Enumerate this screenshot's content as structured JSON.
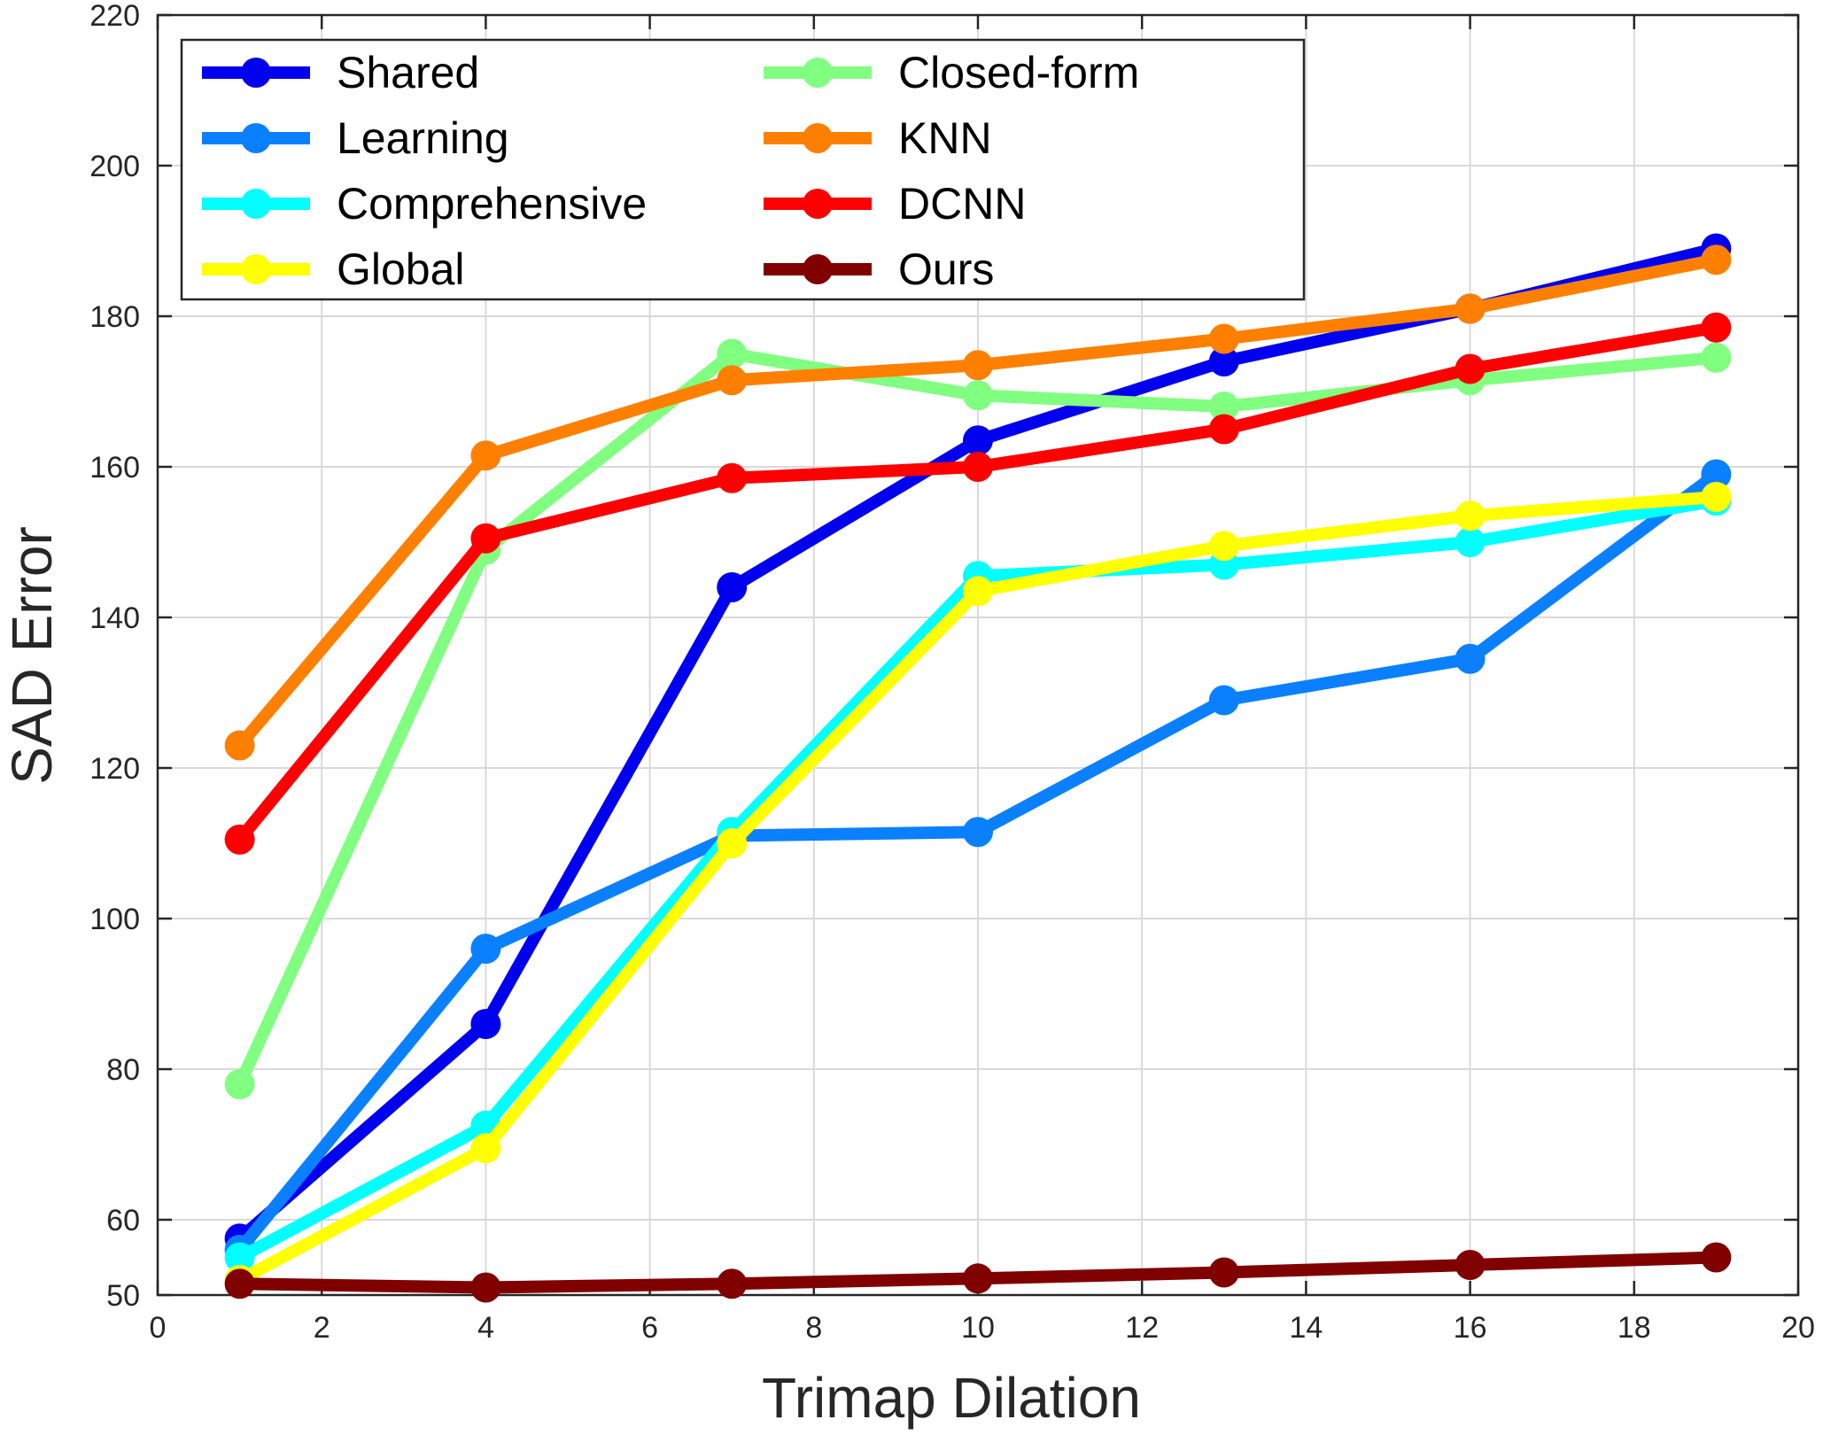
{
  "chart_data": {
    "type": "line",
    "title": "",
    "xlabel": "Trimap Dilation",
    "ylabel": "SAD Error",
    "xlim": [
      0,
      20
    ],
    "ylim": [
      50,
      220
    ],
    "xticks": [
      0,
      2,
      4,
      6,
      8,
      10,
      12,
      14,
      16,
      18,
      20
    ],
    "yticks": [
      50,
      60,
      80,
      100,
      120,
      140,
      160,
      180,
      200,
      220
    ],
    "grid": true,
    "legend_position": "top-left",
    "x": [
      1,
      4,
      7,
      10,
      13,
      16,
      19
    ],
    "series": [
      {
        "name": "Shared",
        "color": "#0000ee",
        "values": [
          57.5,
          86,
          144,
          163.5,
          174,
          181,
          189
        ]
      },
      {
        "name": "Learning",
        "color": "#0a80ff",
        "values": [
          56,
          96,
          111,
          111.5,
          129,
          134.5,
          159
        ]
      },
      {
        "name": "Comprehensive",
        "color": "#00ffff",
        "values": [
          55,
          72.5,
          111.5,
          145.5,
          147,
          150,
          155.5
        ]
      },
      {
        "name": "Global",
        "color": "#ffff00",
        "values": [
          52,
          69.5,
          110,
          143.5,
          149.5,
          153.5,
          156
        ]
      },
      {
        "name": "Closed-form",
        "color": "#80ff80",
        "values": [
          78,
          149,
          175,
          169.5,
          168,
          171.5,
          174.5
        ]
      },
      {
        "name": "KNN",
        "color": "#ff8000",
        "values": [
          123,
          161.5,
          171.5,
          173.5,
          177,
          181,
          187.5
        ]
      },
      {
        "name": "DCNN",
        "color": "#ff0000",
        "values": [
          110.5,
          150.5,
          158.5,
          160,
          165,
          173,
          178.5
        ]
      },
      {
        "name": "Ours",
        "color": "#800000",
        "values": [
          51.5,
          51,
          51.5,
          52.2,
          53,
          54,
          55
        ]
      }
    ]
  }
}
